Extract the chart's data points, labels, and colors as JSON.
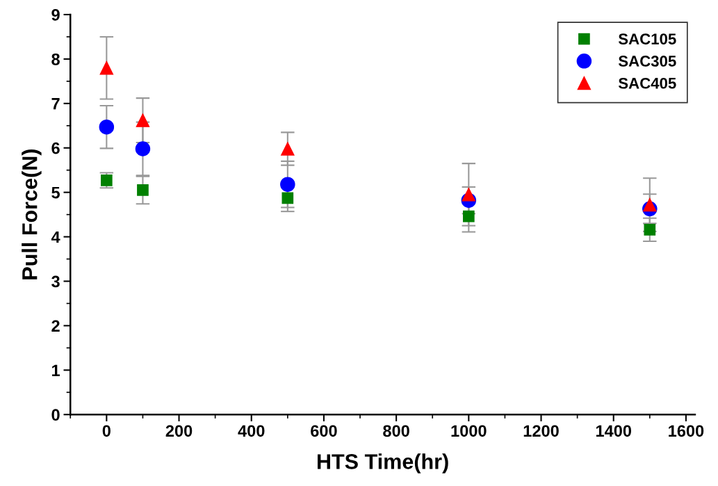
{
  "chart_data": {
    "type": "scatter",
    "xlabel": "HTS Time(hr)",
    "ylabel": "Pull Force(N)",
    "x": [
      0,
      100,
      500,
      1000,
      1500
    ],
    "xlim": [
      -100,
      1625
    ],
    "xticks": [
      0,
      200,
      400,
      600,
      800,
      1000,
      1200,
      1400,
      1600
    ],
    "ylim": [
      0,
      9
    ],
    "yticks": [
      0,
      1,
      2,
      3,
      4,
      5,
      6,
      7,
      8,
      9
    ],
    "grid": false,
    "legend": "top right",
    "series": [
      {
        "name": "SAC105",
        "color": "#008000",
        "marker": "square",
        "values": [
          5.27,
          5.05,
          4.87,
          4.46,
          4.16
        ],
        "errors": [
          0.17,
          0.31,
          0.3,
          0.35,
          0.26
        ]
      },
      {
        "name": "SAC305",
        "color": "#0000ff",
        "marker": "circle",
        "values": [
          6.47,
          5.98,
          5.18,
          4.82,
          4.63
        ],
        "errors": [
          0.48,
          0.6,
          0.52,
          0.3,
          0.33
        ]
      },
      {
        "name": "SAC405",
        "color": "#ff0000",
        "marker": "triangle",
        "values": [
          7.8,
          6.62,
          5.98,
          4.95,
          4.72
        ],
        "errors": [
          0.7,
          0.5,
          0.37,
          0.7,
          0.6
        ]
      }
    ]
  }
}
